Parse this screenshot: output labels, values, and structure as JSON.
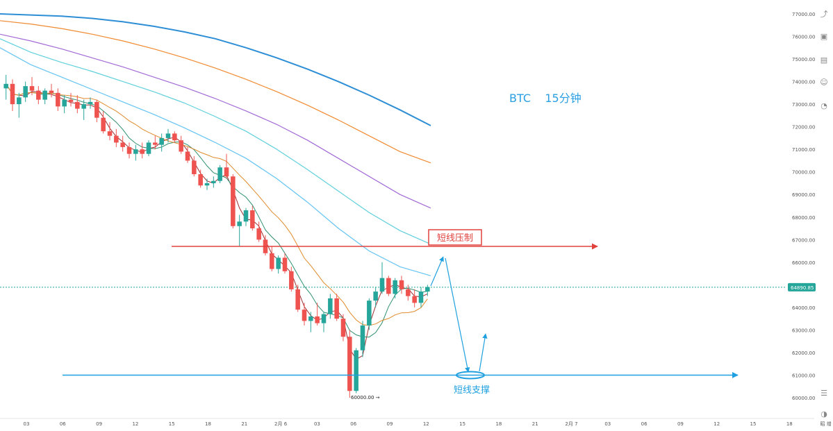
{
  "chart_data": {
    "type": "candlestick",
    "title": "BTC    15分钟",
    "current_price": "64890.85",
    "low_marker": "60000.00",
    "ylim": [
      59700,
      77400
    ],
    "y_ticks": [
      "77000.00",
      "76000.00",
      "75000.00",
      "74000.00",
      "73000.00",
      "72000.00",
      "71000.00",
      "70000.00",
      "69000.00",
      "68000.00",
      "67000.00",
      "66000.00",
      "65000.00",
      "64000.00",
      "63000.00",
      "62000.00",
      "61000.00",
      "60000.00"
    ],
    "x_ticks": [
      "03",
      "06",
      "09",
      "12",
      "15",
      "18",
      "21",
      "2月 6",
      "03",
      "06",
      "09",
      "12",
      "15",
      "18",
      "21",
      "2月 7",
      "03",
      "06",
      "09",
      "12",
      "15",
      "18",
      "昭 增"
    ],
    "annotations": [
      {
        "name": "resistance",
        "label": "短线压制",
        "price": 66700,
        "color": "#e0413d"
      },
      {
        "name": "support",
        "label": "短线支撑",
        "price": 61000,
        "color": "#1ea0e0"
      }
    ],
    "series": [
      {
        "color": "#2d8ed6",
        "values": [
          77000,
          76950,
          76900,
          76800,
          76650,
          76450,
          76200,
          75900,
          75500,
          75050,
          74550,
          74000,
          73400,
          72750,
          72050
        ]
      },
      {
        "color": "#f08a30",
        "values": [
          76700,
          76550,
          76350,
          76100,
          75800,
          75450,
          75050,
          74600,
          74100,
          73550,
          72950,
          72300,
          71600,
          70900,
          70400
        ]
      },
      {
        "color": "#a26ad6",
        "values": [
          76100,
          75800,
          75450,
          75050,
          74650,
          74200,
          73750,
          73250,
          72700,
          72100,
          71400,
          70600,
          69800,
          69000,
          68400
        ]
      },
      {
        "color": "#5fd0dc",
        "values": [
          75900,
          75300,
          74850,
          74450,
          74000,
          73550,
          73050,
          72450,
          71800,
          71000,
          70100,
          69150,
          68200,
          67400,
          66800
        ]
      },
      {
        "color": "#64c4f2",
        "values": [
          75500,
          74750,
          74200,
          73650,
          73100,
          72550,
          71950,
          71300,
          70600,
          69700,
          68650,
          67500,
          66500,
          65800,
          65400
        ]
      }
    ],
    "candles": [
      [
        73700,
        74300,
        73200,
        73900
      ],
      [
        73900,
        74100,
        72700,
        73000
      ],
      [
        73000,
        73500,
        72400,
        73300
      ],
      [
        73300,
        74000,
        73100,
        73800
      ],
      [
        73800,
        74200,
        73400,
        73600
      ],
      [
        73600,
        73800,
        73000,
        73200
      ],
      [
        73200,
        73700,
        73000,
        73600
      ],
      [
        73600,
        73900,
        73300,
        73500
      ],
      [
        73500,
        73700,
        72700,
        72900
      ],
      [
        72900,
        73400,
        72600,
        73200
      ],
      [
        73200,
        73500,
        72900,
        73100
      ],
      [
        73100,
        73400,
        72600,
        72800
      ],
      [
        72800,
        73200,
        72300,
        73000
      ],
      [
        73000,
        73300,
        72800,
        73100
      ],
      [
        73100,
        73200,
        72200,
        72400
      ],
      [
        72400,
        72700,
        71700,
        71800
      ],
      [
        71800,
        72200,
        71400,
        71600
      ],
      [
        71600,
        71900,
        71100,
        71300
      ],
      [
        71300,
        71600,
        70900,
        71100
      ],
      [
        71100,
        71300,
        70600,
        70800
      ],
      [
        70800,
        71200,
        70500,
        71000
      ],
      [
        71000,
        71300,
        70600,
        70800
      ],
      [
        70800,
        71400,
        70700,
        71300
      ],
      [
        71300,
        71600,
        71000,
        71200
      ],
      [
        71200,
        71700,
        70900,
        71500
      ],
      [
        71500,
        71900,
        71300,
        71700
      ],
      [
        71700,
        71800,
        71300,
        71400
      ],
      [
        71400,
        71600,
        70800,
        70900
      ],
      [
        70900,
        71100,
        70400,
        70500
      ],
      [
        70500,
        70700,
        69800,
        69900
      ],
      [
        69900,
        70100,
        69300,
        69400
      ],
      [
        69400,
        69700,
        69200,
        69500
      ],
      [
        69500,
        69800,
        69300,
        69600
      ],
      [
        69600,
        70300,
        69500,
        70200
      ],
      [
        70200,
        70800,
        69700,
        69800
      ],
      [
        69800,
        69900,
        67500,
        67600
      ],
      [
        67600,
        68100,
        66700,
        67800
      ],
      [
        67800,
        68400,
        67600,
        68300
      ],
      [
        68300,
        68500,
        67400,
        67500
      ],
      [
        67500,
        67800,
        66900,
        67000
      ],
      [
        67000,
        67200,
        66300,
        66400
      ],
      [
        66400,
        66700,
        65600,
        65700
      ],
      [
        65700,
        66300,
        65500,
        66200
      ],
      [
        66200,
        66400,
        65500,
        65600
      ],
      [
        65600,
        65800,
        64700,
        64800
      ],
      [
        64800,
        65000,
        63800,
        63900
      ],
      [
        63900,
        64200,
        63200,
        63400
      ],
      [
        63400,
        63800,
        62900,
        63600
      ],
      [
        63600,
        64200,
        63200,
        63300
      ],
      [
        63300,
        63800,
        62900,
        63700
      ],
      [
        63700,
        64600,
        63500,
        64400
      ],
      [
        64400,
        64600,
        63400,
        63500
      ],
      [
        63500,
        63700,
        62500,
        62700
      ],
      [
        62700,
        63000,
        60000,
        60300
      ],
      [
        60300,
        62200,
        60200,
        62100
      ],
      [
        62100,
        63400,
        61800,
        63200
      ],
      [
        63200,
        64400,
        63000,
        64300
      ],
      [
        64300,
        64900,
        64000,
        64700
      ],
      [
        64700,
        66000,
        64600,
        65300
      ],
      [
        65300,
        65400,
        64500,
        64600
      ],
      [
        64600,
        65300,
        64400,
        65200
      ],
      [
        65200,
        65400,
        64600,
        64800
      ],
      [
        64800,
        65000,
        64300,
        64500
      ],
      [
        64500,
        64800,
        64000,
        64200
      ],
      [
        64200,
        64900,
        64000,
        64700
      ],
      [
        64700,
        65000,
        64500,
        64900
      ]
    ]
  },
  "toolbar": {
    "tools": [
      "chart-up-icon",
      "calendar-icon",
      "card-icon",
      "robot-icon",
      "time-icon",
      "pie-icon"
    ]
  }
}
